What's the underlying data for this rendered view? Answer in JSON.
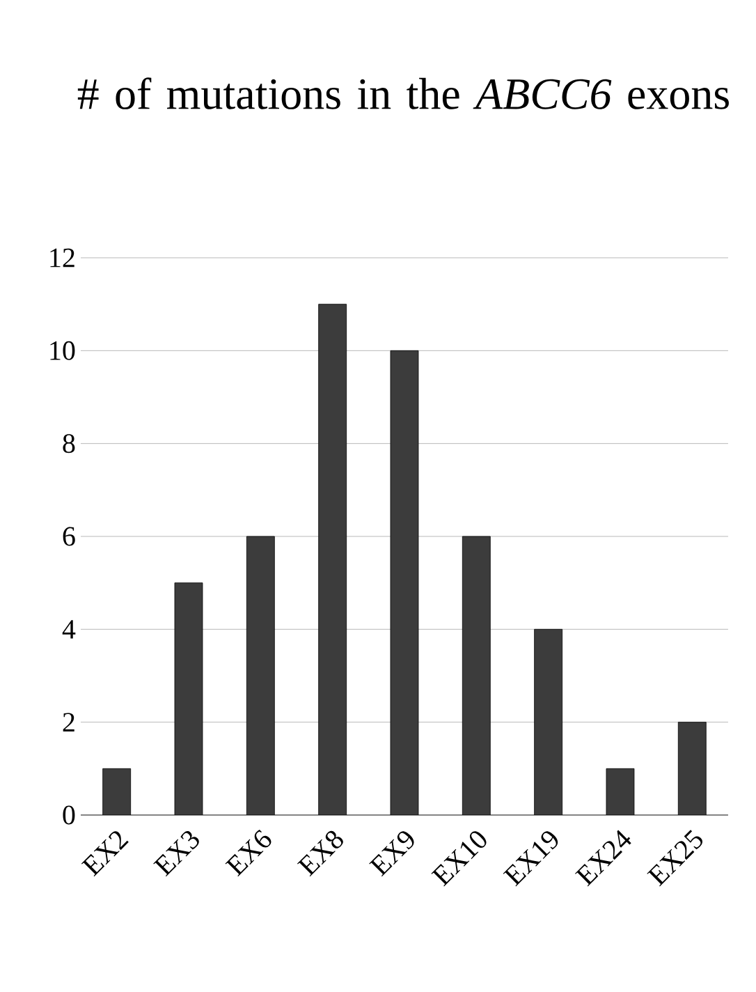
{
  "chart_data": {
    "type": "bar",
    "title": "# of mutations in the *ABCC6* exons",
    "categories": [
      "EX2",
      "EX3",
      "EX6",
      "EX8",
      "EX9",
      "EX10",
      "EX19",
      "EX24",
      "EX25"
    ],
    "values": [
      1,
      5,
      6,
      11,
      10,
      6,
      4,
      1,
      2
    ],
    "color": "#3c3c3c",
    "ylim": [
      0,
      12
    ],
    "yticks": [
      0,
      2,
      4,
      6,
      8,
      10,
      12
    ],
    "grid": "y"
  }
}
